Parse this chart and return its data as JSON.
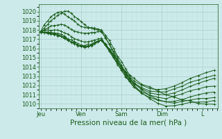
{
  "background_color": "#cceaea",
  "grid_color_major": "#aacccc",
  "grid_color_minor": "#bbdddd",
  "line_color": "#1a5c1a",
  "ylim": [
    1009.5,
    1020.8
  ],
  "yticks": [
    1010,
    1011,
    1012,
    1013,
    1014,
    1015,
    1016,
    1017,
    1018,
    1019,
    1020
  ],
  "x_day_labels": [
    "Jeu",
    "Ven",
    "Sam",
    "Dim",
    "L"
  ],
  "x_day_positions": [
    0,
    1,
    2,
    3,
    4
  ],
  "xlabel": "Pression niveau de la mer( hPa )",
  "xlabel_fontsize": 7.5,
  "tick_fontsize": 6,
  "series": [
    {
      "x": [
        0.0,
        0.08,
        0.17,
        0.25,
        0.33,
        0.42,
        0.5,
        0.58,
        0.67,
        0.75,
        0.83,
        0.92,
        1.0,
        1.08,
        1.17,
        1.25,
        1.33,
        1.42,
        1.5,
        1.6,
        1.7,
        1.8,
        1.9,
        2.0,
        2.1,
        2.2,
        2.3,
        2.5,
        2.7,
        2.9,
        3.1,
        3.3,
        3.5,
        3.7,
        3.9,
        4.1,
        4.3
      ],
      "y": [
        1017.8,
        1018.2,
        1018.6,
        1019.0,
        1019.3,
        1019.6,
        1019.8,
        1020.1,
        1020.0,
        1019.8,
        1019.5,
        1019.2,
        1018.9,
        1018.6,
        1018.3,
        1018.3,
        1018.2,
        1018.1,
        1018.0,
        1017.5,
        1016.8,
        1016.0,
        1015.2,
        1014.5,
        1013.8,
        1013.2,
        1012.8,
        1012.2,
        1011.8,
        1011.4,
        1011.0,
        1010.7,
        1010.5,
        1010.3,
        1010.1,
        1010.0,
        1010.0
      ]
    },
    {
      "x": [
        0.0,
        0.08,
        0.17,
        0.25,
        0.33,
        0.42,
        0.5,
        0.58,
        0.67,
        0.75,
        0.83,
        0.92,
        1.0,
        1.08,
        1.17,
        1.25,
        1.33,
        1.42,
        1.5,
        1.6,
        1.7,
        1.8,
        1.9,
        2.0,
        2.1,
        2.2,
        2.3,
        2.5,
        2.7,
        2.9,
        3.1,
        3.3,
        3.5,
        3.7,
        3.9,
        4.1,
        4.3
      ],
      "y": [
        1017.8,
        1018.5,
        1019.0,
        1019.4,
        1019.7,
        1019.9,
        1020.0,
        1019.8,
        1019.5,
        1019.2,
        1018.9,
        1018.6,
        1018.4,
        1018.2,
        1018.2,
        1018.2,
        1018.1,
        1018.0,
        1017.9,
        1017.2,
        1016.4,
        1015.5,
        1014.7,
        1013.9,
        1013.2,
        1012.5,
        1012.0,
        1011.2,
        1010.6,
        1010.1,
        1009.8,
        1009.8,
        1010.0,
        1010.1,
        1010.2,
        1010.2,
        1010.3
      ]
    },
    {
      "x": [
        0.0,
        0.08,
        0.17,
        0.25,
        0.33,
        0.42,
        0.5,
        0.58,
        0.67,
        0.75,
        0.83,
        0.92,
        1.0,
        1.08,
        1.17,
        1.25,
        1.33,
        1.42,
        1.5,
        1.6,
        1.7,
        1.8,
        1.9,
        2.0,
        2.1,
        2.2,
        2.3,
        2.5,
        2.7,
        2.9,
        3.1,
        3.3,
        3.5,
        3.7,
        3.9,
        4.1,
        4.3
      ],
      "y": [
        1017.8,
        1018.0,
        1018.2,
        1018.4,
        1018.5,
        1018.6,
        1018.6,
        1018.5,
        1018.3,
        1018.1,
        1017.9,
        1017.8,
        1017.7,
        1017.6,
        1017.6,
        1017.7,
        1017.7,
        1017.8,
        1017.8,
        1017.2,
        1016.5,
        1015.7,
        1014.9,
        1014.1,
        1013.4,
        1012.8,
        1012.3,
        1011.5,
        1010.9,
        1010.5,
        1010.2,
        1010.1,
        1010.2,
        1010.4,
        1010.5,
        1010.6,
        1010.7
      ]
    },
    {
      "x": [
        0.0,
        0.08,
        0.17,
        0.25,
        0.33,
        0.42,
        0.5,
        0.58,
        0.67,
        0.75,
        0.83,
        0.92,
        1.0,
        1.08,
        1.17,
        1.25,
        1.33,
        1.42,
        1.5,
        1.6,
        1.7,
        1.8,
        1.9,
        2.0,
        2.1,
        2.2,
        2.3,
        2.5,
        2.7,
        2.9,
        3.1,
        3.3,
        3.5,
        3.7,
        3.9,
        4.1,
        4.3
      ],
      "y": [
        1017.8,
        1017.9,
        1018.0,
        1018.0,
        1018.0,
        1018.0,
        1017.9,
        1017.7,
        1017.5,
        1017.3,
        1017.1,
        1016.9,
        1016.8,
        1016.7,
        1016.7,
        1016.8,
        1016.9,
        1017.0,
        1017.1,
        1016.5,
        1015.8,
        1015.1,
        1014.4,
        1013.7,
        1013.0,
        1012.4,
        1011.9,
        1011.2,
        1010.7,
        1010.4,
        1010.2,
        1010.3,
        1010.5,
        1010.8,
        1011.0,
        1011.2,
        1011.3
      ]
    },
    {
      "x": [
        0.0,
        0.08,
        0.17,
        0.25,
        0.33,
        0.42,
        0.5,
        0.58,
        0.67,
        0.75,
        0.83,
        0.92,
        1.0,
        1.08,
        1.17,
        1.25,
        1.33,
        1.42,
        1.5,
        1.6,
        1.7,
        1.8,
        1.9,
        2.0,
        2.1,
        2.2,
        2.3,
        2.5,
        2.7,
        2.9,
        3.1,
        3.3,
        3.5,
        3.7,
        3.9,
        4.1,
        4.3
      ],
      "y": [
        1017.8,
        1017.8,
        1017.8,
        1017.8,
        1017.7,
        1017.6,
        1017.5,
        1017.3,
        1017.1,
        1016.9,
        1016.7,
        1016.5,
        1016.4,
        1016.3,
        1016.4,
        1016.5,
        1016.6,
        1016.8,
        1016.9,
        1016.3,
        1015.7,
        1015.0,
        1014.3,
        1013.6,
        1013.0,
        1012.4,
        1011.9,
        1011.3,
        1010.9,
        1010.7,
        1010.6,
        1010.8,
        1011.1,
        1011.4,
        1011.6,
        1011.8,
        1011.9
      ]
    },
    {
      "x": [
        0.0,
        0.08,
        0.17,
        0.25,
        0.33,
        0.42,
        0.5,
        0.58,
        0.67,
        0.75,
        0.83,
        0.92,
        1.0,
        1.08,
        1.17,
        1.25,
        1.33,
        1.42,
        1.5,
        1.6,
        1.7,
        1.8,
        1.9,
        2.0,
        2.1,
        2.2,
        2.3,
        2.5,
        2.7,
        2.9,
        3.1,
        3.3,
        3.5,
        3.7,
        3.9,
        4.1,
        4.3
      ],
      "y": [
        1017.8,
        1017.8,
        1017.7,
        1017.7,
        1017.6,
        1017.5,
        1017.4,
        1017.2,
        1017.0,
        1016.8,
        1016.6,
        1016.4,
        1016.3,
        1016.2,
        1016.3,
        1016.4,
        1016.6,
        1016.8,
        1017.0,
        1016.5,
        1015.9,
        1015.3,
        1014.6,
        1013.9,
        1013.3,
        1012.7,
        1012.2,
        1011.6,
        1011.2,
        1011.0,
        1011.0,
        1011.2,
        1011.5,
        1011.9,
        1012.2,
        1012.5,
        1012.7
      ]
    },
    {
      "x": [
        0.0,
        0.08,
        0.17,
        0.25,
        0.33,
        0.42,
        0.5,
        0.58,
        0.67,
        0.75,
        0.83,
        0.92,
        1.0,
        1.08,
        1.17,
        1.25,
        1.33,
        1.42,
        1.5,
        1.6,
        1.7,
        1.8,
        1.9,
        2.0,
        2.1,
        2.2,
        2.3,
        2.5,
        2.7,
        2.9,
        3.1,
        3.3,
        3.5,
        3.7,
        3.9,
        4.1,
        4.3
      ],
      "y": [
        1017.8,
        1017.7,
        1017.7,
        1017.6,
        1017.5,
        1017.4,
        1017.3,
        1017.1,
        1016.9,
        1016.7,
        1016.5,
        1016.3,
        1016.2,
        1016.1,
        1016.2,
        1016.3,
        1016.5,
        1016.7,
        1016.9,
        1016.4,
        1015.8,
        1015.2,
        1014.6,
        1014.0,
        1013.4,
        1012.8,
        1012.3,
        1011.8,
        1011.4,
        1011.3,
        1011.3,
        1011.6,
        1011.9,
        1012.3,
        1012.6,
        1012.9,
        1013.1
      ]
    },
    {
      "x": [
        0.0,
        0.08,
        0.17,
        0.25,
        0.33,
        0.42,
        0.5,
        0.58,
        0.67,
        0.75,
        0.83,
        0.92,
        1.0,
        1.08,
        1.17,
        1.25,
        1.33,
        1.42,
        1.5,
        1.6,
        1.7,
        1.8,
        1.9,
        2.0,
        2.1,
        2.2,
        2.3,
        2.5,
        2.7,
        2.9,
        3.1,
        3.3,
        3.5,
        3.7,
        3.9,
        4.1,
        4.3
      ],
      "y": [
        1017.8,
        1017.7,
        1017.6,
        1017.6,
        1017.5,
        1017.4,
        1017.3,
        1017.1,
        1016.9,
        1016.7,
        1016.5,
        1016.3,
        1016.2,
        1016.1,
        1016.2,
        1016.4,
        1016.6,
        1016.8,
        1017.0,
        1016.5,
        1015.9,
        1015.3,
        1014.7,
        1014.1,
        1013.5,
        1013.0,
        1012.5,
        1012.0,
        1011.7,
        1011.6,
        1011.6,
        1011.9,
        1012.3,
        1012.7,
        1013.1,
        1013.4,
        1013.6
      ]
    }
  ]
}
